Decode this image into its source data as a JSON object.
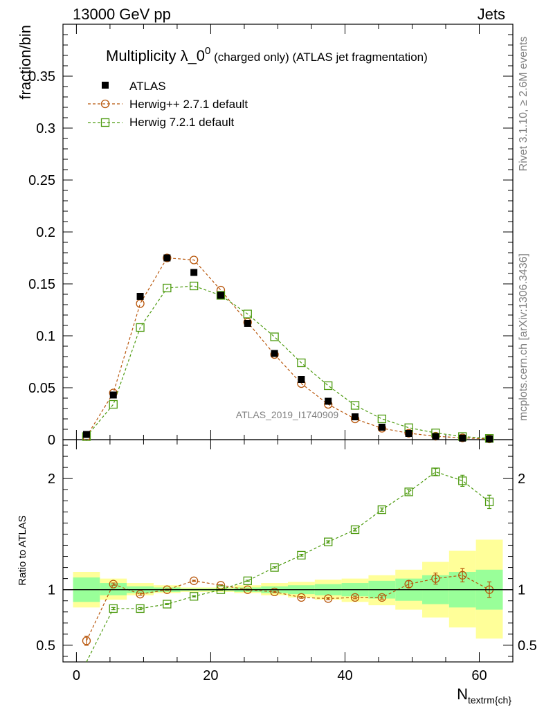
{
  "header": {
    "left": "13000 GeV pp",
    "right": "Jets"
  },
  "side_labels": {
    "rivet": "Rivet 3.1.10, ≥ 2.6M events",
    "mcplots": "mcplots.cern.ch [arXiv:1306.3436]"
  },
  "analysis_id": "ATLAS_2019_I1740909",
  "chart_data": {
    "type": "scatter",
    "title_main": "Multiplicity λ_0",
    "title_sup": "0",
    "title_rest": " (charged only) (ATLAS jet fragmentation)",
    "ylabel": "fraction/bin",
    "ratio_ylabel": "Ratio to ATLAS",
    "xlabel_main": "N",
    "xlabel_sub": "textrm{ch}",
    "xlim": [
      -2,
      65
    ],
    "ylim": [
      0,
      0.4
    ],
    "ratio_ylim": [
      0.35,
      2.35
    ],
    "x_ticks": [
      0,
      20,
      40,
      60
    ],
    "y_ticks": [
      0,
      0.05,
      0.1,
      0.15,
      0.2,
      0.25,
      0.3,
      0.35
    ],
    "y_tick_labels": [
      "0",
      "0.05",
      "0.1",
      "0.15",
      "0.2",
      "0.25",
      "0.3",
      "0.35"
    ],
    "ratio_ticks": [
      0.5,
      1,
      2
    ],
    "ratio_tick_labels": [
      "0.5",
      "1",
      "2"
    ],
    "x": [
      1.5,
      5.5,
      9.5,
      13.5,
      17.5,
      21.5,
      25.5,
      29.5,
      33.5,
      37.5,
      41.5,
      45.5,
      49.5,
      53.5,
      57.5,
      61.5
    ],
    "bin_edges": [
      -0.5,
      3.5,
      7.5,
      11.5,
      15.5,
      19.5,
      23.5,
      27.5,
      31.5,
      35.5,
      39.5,
      43.5,
      47.5,
      51.5,
      55.5,
      59.5,
      63.5
    ],
    "band_green": {
      "lo": [
        0.89,
        0.95,
        0.97,
        0.98,
        0.99,
        0.99,
        0.98,
        0.97,
        0.96,
        0.95,
        0.94,
        0.92,
        0.9,
        0.87,
        0.84,
        0.82
      ],
      "hi": [
        1.11,
        1.06,
        1.03,
        1.02,
        1.01,
        1.01,
        1.02,
        1.03,
        1.04,
        1.05,
        1.06,
        1.08,
        1.1,
        1.13,
        1.16,
        1.18
      ]
    },
    "band_yellow": {
      "lo": [
        0.84,
        0.91,
        0.95,
        0.97,
        0.98,
        0.98,
        0.97,
        0.95,
        0.93,
        0.91,
        0.89,
        0.86,
        0.82,
        0.75,
        0.66,
        0.56
      ],
      "hi": [
        1.16,
        1.1,
        1.06,
        1.04,
        1.02,
        1.02,
        1.04,
        1.06,
        1.07,
        1.09,
        1.1,
        1.13,
        1.18,
        1.25,
        1.35,
        1.45
      ]
    },
    "series": [
      {
        "name": "ATLAS",
        "color": "#000000",
        "marker": "filled-square",
        "values": [
          0.005,
          0.043,
          0.138,
          0.175,
          0.161,
          0.139,
          0.112,
          0.083,
          0.058,
          0.037,
          0.022,
          0.012,
          0.006,
          0.003,
          0.0015,
          0.0007
        ]
      },
      {
        "name": "Herwig++ 2.7.1 default",
        "color": "#b8560b",
        "marker": "open-circle",
        "values": [
          0.003,
          0.045,
          0.131,
          0.175,
          0.173,
          0.144,
          0.113,
          0.082,
          0.054,
          0.034,
          0.02,
          0.011,
          0.0062,
          0.0033,
          0.0017,
          0.0007
        ],
        "ratio": [
          0.54,
          1.05,
          0.96,
          1.0,
          1.08,
          1.04,
          1.0,
          0.98,
          0.93,
          0.92,
          0.93,
          0.93,
          1.05,
          1.1,
          1.13,
          1.0
        ],
        "ratio_err": [
          0.04,
          0.01,
          0.01,
          0.005,
          0.005,
          0.005,
          0.005,
          0.006,
          0.008,
          0.01,
          0.012,
          0.015,
          0.03,
          0.05,
          0.06,
          0.07
        ]
      },
      {
        "name": "Herwig 7.2.1 default",
        "color": "#4c9a0e",
        "marker": "open-square",
        "values": [
          0.003,
          0.034,
          0.108,
          0.146,
          0.148,
          0.139,
          0.121,
          0.099,
          0.074,
          0.052,
          0.033,
          0.02,
          0.0115,
          0.0065,
          0.003,
          0.0012
        ],
        "ratio": [
          0.3,
          0.83,
          0.83,
          0.87,
          0.94,
          1.0,
          1.08,
          1.2,
          1.31,
          1.43,
          1.54,
          1.72,
          1.88,
          2.06,
          1.98,
          1.79
        ],
        "ratio_err": [
          0.04,
          0.01,
          0.01,
          0.005,
          0.005,
          0.005,
          0.005,
          0.006,
          0.008,
          0.01,
          0.012,
          0.015,
          0.02,
          0.03,
          0.05,
          0.06
        ]
      }
    ]
  }
}
